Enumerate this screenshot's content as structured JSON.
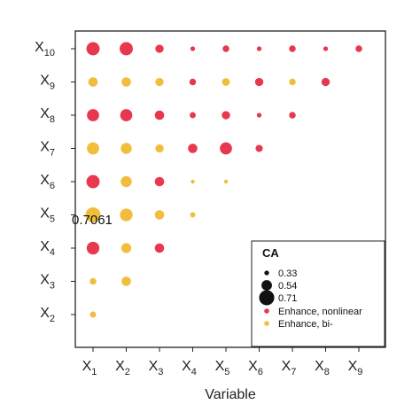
{
  "chart_data": {
    "type": "scatter",
    "xlabel": "Variable",
    "ylabel": "",
    "x_categories": [
      "1",
      "2",
      "3",
      "4",
      "5",
      "6",
      "7",
      "8",
      "9"
    ],
    "y_categories": [
      "2",
      "3",
      "4",
      "5",
      "6",
      "7",
      "8",
      "9",
      "10"
    ],
    "tick_prefix": "X",
    "annotation": "0.7061",
    "legend": {
      "title": "CA",
      "position": "bottom-right",
      "sizes": [
        {
          "label": "0.33",
          "value": 0.33
        },
        {
          "label": "0.54",
          "value": 0.54
        },
        {
          "label": "0.71",
          "value": 0.71
        }
      ],
      "types": [
        {
          "label": "Enhance, nonlinear",
          "color": "#e8384f"
        },
        {
          "label": "Enhance, bi-",
          "color": "#f0be3c"
        }
      ]
    },
    "points": [
      {
        "x": "1",
        "y": "2",
        "ca": 0.38,
        "type": "Enhance, bi-"
      },
      {
        "x": "1",
        "y": "3",
        "ca": 0.4,
        "type": "Enhance, bi-"
      },
      {
        "x": "2",
        "y": "3",
        "ca": 0.5,
        "type": "Enhance, bi-"
      },
      {
        "x": "1",
        "y": "4",
        "ca": 0.62,
        "type": "Enhance, nonlinear"
      },
      {
        "x": "2",
        "y": "4",
        "ca": 0.52,
        "type": "Enhance, bi-"
      },
      {
        "x": "3",
        "y": "4",
        "ca": 0.5,
        "type": "Enhance, nonlinear"
      },
      {
        "x": "1",
        "y": "5",
        "ca": 0.7061,
        "type": "Enhance, bi-"
      },
      {
        "x": "2",
        "y": "5",
        "ca": 0.62,
        "type": "Enhance, bi-"
      },
      {
        "x": "3",
        "y": "5",
        "ca": 0.5,
        "type": "Enhance, bi-"
      },
      {
        "x": "4",
        "y": "5",
        "ca": 0.35,
        "type": "Enhance, bi-"
      },
      {
        "x": "1",
        "y": "6",
        "ca": 0.64,
        "type": "Enhance, nonlinear"
      },
      {
        "x": "2",
        "y": "6",
        "ca": 0.56,
        "type": "Enhance, bi-"
      },
      {
        "x": "3",
        "y": "6",
        "ca": 0.5,
        "type": "Enhance, nonlinear"
      },
      {
        "x": "4",
        "y": "6",
        "ca": 0.3,
        "type": "Enhance, bi-"
      },
      {
        "x": "5",
        "y": "6",
        "ca": 0.3,
        "type": "Enhance, bi-"
      },
      {
        "x": "1",
        "y": "7",
        "ca": 0.6,
        "type": "Enhance, bi-"
      },
      {
        "x": "2",
        "y": "7",
        "ca": 0.56,
        "type": "Enhance, bi-"
      },
      {
        "x": "3",
        "y": "7",
        "ca": 0.46,
        "type": "Enhance, bi-"
      },
      {
        "x": "4",
        "y": "7",
        "ca": 0.5,
        "type": "Enhance, nonlinear"
      },
      {
        "x": "5",
        "y": "7",
        "ca": 0.6,
        "type": "Enhance, nonlinear"
      },
      {
        "x": "6",
        "y": "7",
        "ca": 0.42,
        "type": "Enhance, nonlinear"
      },
      {
        "x": "1",
        "y": "8",
        "ca": 0.6,
        "type": "Enhance, nonlinear"
      },
      {
        "x": "2",
        "y": "8",
        "ca": 0.6,
        "type": "Enhance, nonlinear"
      },
      {
        "x": "3",
        "y": "8",
        "ca": 0.5,
        "type": "Enhance, nonlinear"
      },
      {
        "x": "4",
        "y": "8",
        "ca": 0.38,
        "type": "Enhance, nonlinear"
      },
      {
        "x": "5",
        "y": "8",
        "ca": 0.46,
        "type": "Enhance, nonlinear"
      },
      {
        "x": "6",
        "y": "8",
        "ca": 0.33,
        "type": "Enhance, nonlinear"
      },
      {
        "x": "7",
        "y": "8",
        "ca": 0.4,
        "type": "Enhance, nonlinear"
      },
      {
        "x": "1",
        "y": "9",
        "ca": 0.5,
        "type": "Enhance, bi-"
      },
      {
        "x": "2",
        "y": "9",
        "ca": 0.5,
        "type": "Enhance, bi-"
      },
      {
        "x": "3",
        "y": "9",
        "ca": 0.46,
        "type": "Enhance, bi-"
      },
      {
        "x": "4",
        "y": "9",
        "ca": 0.4,
        "type": "Enhance, nonlinear"
      },
      {
        "x": "5",
        "y": "9",
        "ca": 0.44,
        "type": "Enhance, bi-"
      },
      {
        "x": "6",
        "y": "9",
        "ca": 0.46,
        "type": "Enhance, nonlinear"
      },
      {
        "x": "7",
        "y": "9",
        "ca": 0.4,
        "type": "Enhance, bi-"
      },
      {
        "x": "8",
        "y": "9",
        "ca": 0.46,
        "type": "Enhance, nonlinear"
      },
      {
        "x": "1",
        "y": "10",
        "ca": 0.64,
        "type": "Enhance, nonlinear"
      },
      {
        "x": "2",
        "y": "10",
        "ca": 0.64,
        "type": "Enhance, nonlinear"
      },
      {
        "x": "3",
        "y": "10",
        "ca": 0.46,
        "type": "Enhance, nonlinear"
      },
      {
        "x": "4",
        "y": "10",
        "ca": 0.33,
        "type": "Enhance, nonlinear"
      },
      {
        "x": "5",
        "y": "10",
        "ca": 0.4,
        "type": "Enhance, nonlinear"
      },
      {
        "x": "6",
        "y": "10",
        "ca": 0.33,
        "type": "Enhance, nonlinear"
      },
      {
        "x": "7",
        "y": "10",
        "ca": 0.4,
        "type": "Enhance, nonlinear"
      },
      {
        "x": "8",
        "y": "10",
        "ca": 0.33,
        "type": "Enhance, nonlinear"
      },
      {
        "x": "9",
        "y": "10",
        "ca": 0.4,
        "type": "Enhance, nonlinear"
      }
    ]
  }
}
